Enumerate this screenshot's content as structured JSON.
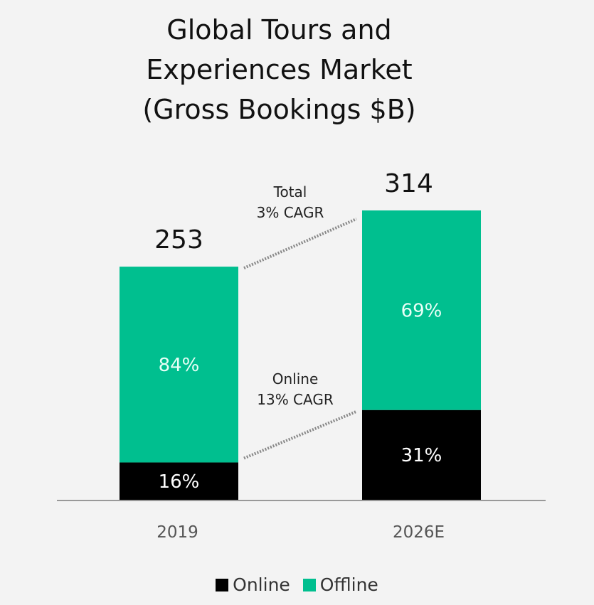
{
  "chart_data": {
    "type": "bar",
    "stacked": true,
    "title_lines": [
      "Global Tours and",
      "Experiences Market",
      "(Gross Bookings $B)"
    ],
    "categories": [
      "2019",
      "2026E"
    ],
    "totals": [
      253,
      314
    ],
    "series": [
      {
        "name": "Online",
        "color": "#000000",
        "label_color": "#ffffff",
        "percent": [
          16,
          31
        ],
        "labels": [
          "16%",
          "31%"
        ]
      },
      {
        "name": "Offline",
        "color": "#00bf8f",
        "label_color": "#e9fff7",
        "percent": [
          84,
          69
        ],
        "labels": [
          "84%",
          "69%"
        ]
      }
    ],
    "annotations": [
      {
        "lines": [
          "Total",
          "3% CAGR"
        ],
        "connects": "totals"
      },
      {
        "lines": [
          "Online",
          "13% CAGR"
        ],
        "connects": "online"
      }
    ],
    "ylim": [
      0,
      314
    ],
    "grid": false,
    "legend_position": "bottom"
  }
}
